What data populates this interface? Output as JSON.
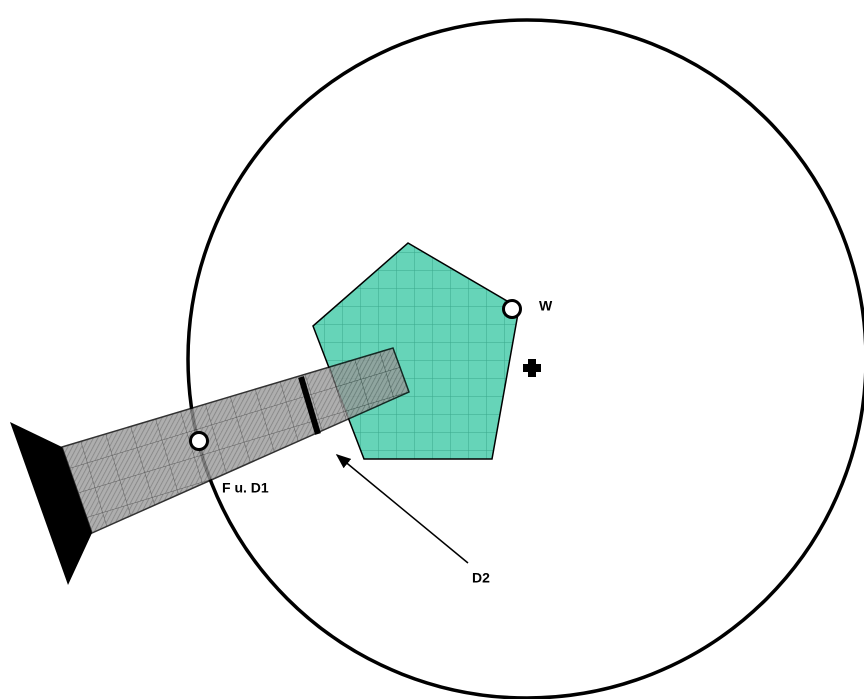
{
  "labels": {
    "w": "W",
    "f_d1": "F u. D1",
    "d2": "D2"
  }
}
